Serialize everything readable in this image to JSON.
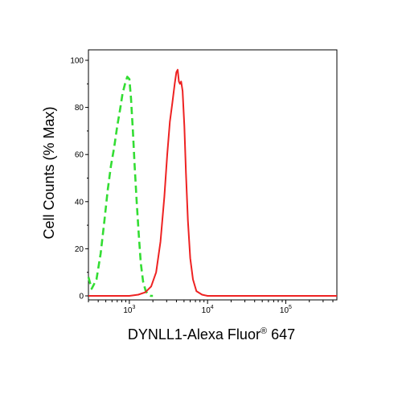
{
  "chart_data": {
    "type": "line",
    "title": "",
    "xlabel": "DYNLL1-Alexa Fluor",
    "xlabel_superscript": "®",
    "xlabel_suffix": " 647",
    "ylabel": "Cell Counts (% Max)",
    "x_scale": "log",
    "xlim": [
      300,
      450000
    ],
    "ylim": [
      0,
      100
    ],
    "grid": false,
    "x_ticks": [
      {
        "value": 1000,
        "base": "10",
        "exp": "3"
      },
      {
        "value": 10000,
        "base": "10",
        "exp": "4"
      },
      {
        "value": 100000,
        "base": "10",
        "exp": "5"
      }
    ],
    "y_ticks": [
      {
        "value": 0,
        "label": "0"
      },
      {
        "value": 20,
        "label": "20"
      },
      {
        "value": 40,
        "label": "40"
      },
      {
        "value": 60,
        "label": "60"
      },
      {
        "value": 80,
        "label": "80"
      },
      {
        "value": 100,
        "label": "100"
      }
    ],
    "series": [
      {
        "color": "#33dd33",
        "style": "dashed",
        "x": [
          300,
          330,
          380,
          430,
          480,
          530,
          580,
          640,
          700,
          760,
          820,
          880,
          940,
          1000,
          1050,
          1110,
          1170,
          1240,
          1320,
          1400,
          1500,
          1620,
          1750,
          1880,
          2000
        ],
        "y": [
          8,
          3,
          7,
          18,
          32,
          45,
          55,
          63,
          72,
          79,
          86,
          90,
          93,
          92,
          84,
          70,
          55,
          40,
          26,
          14,
          6,
          2,
          0.5,
          0,
          0
        ]
      },
      {
        "color": "#ee2222",
        "style": "solid",
        "x": [
          300,
          600,
          1000,
          1300,
          1600,
          1900,
          2200,
          2500,
          2800,
          3050,
          3300,
          3550,
          3800,
          4000,
          4150,
          4300,
          4450,
          4600,
          4800,
          5050,
          5300,
          5600,
          6000,
          6500,
          7200,
          8500,
          10000,
          20000,
          100000,
          450000
        ],
        "y": [
          0,
          0,
          0,
          0.5,
          1.5,
          4,
          10,
          23,
          42,
          60,
          74,
          82,
          90,
          95,
          96,
          91,
          90,
          91,
          87,
          72,
          52,
          32,
          16,
          7,
          2,
          0.5,
          0,
          0,
          0,
          0
        ]
      }
    ]
  }
}
